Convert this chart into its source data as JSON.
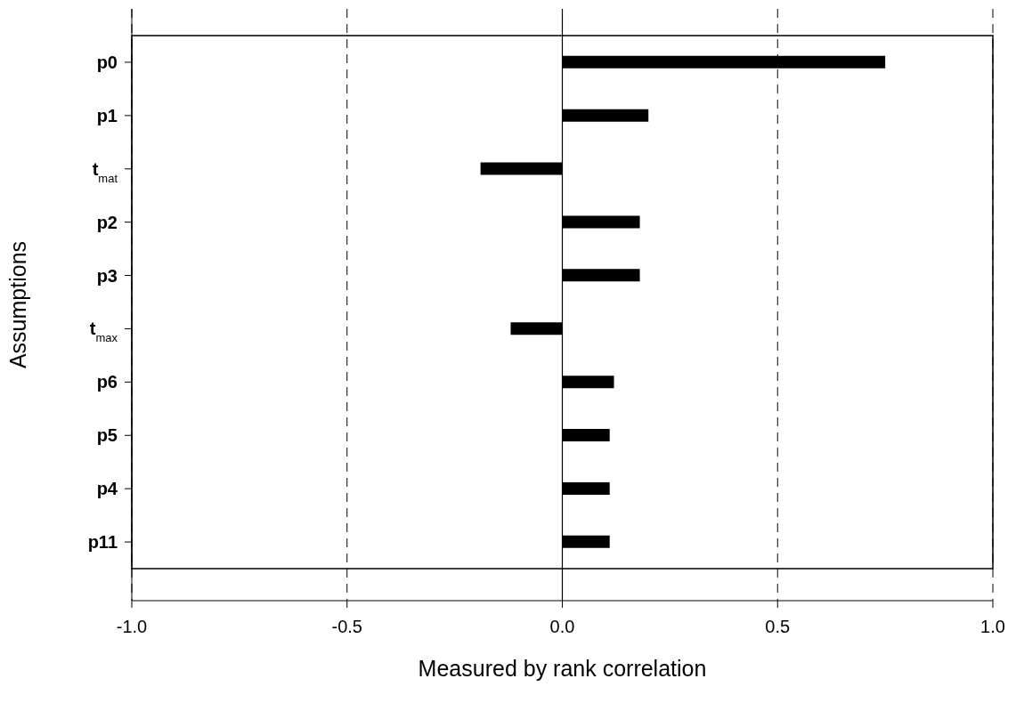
{
  "chart_data": {
    "type": "bar",
    "orientation": "horizontal",
    "xlabel": "Measured by rank correlation",
    "ylabel": "Assumptions",
    "categories": [
      "p0",
      "p1",
      "t$_{mat}$",
      "p2",
      "p3",
      "t$_{max}$",
      "p6",
      "p5",
      "p4",
      "p11"
    ],
    "values": [
      0.75,
      0.2,
      -0.19,
      0.18,
      0.18,
      -0.12,
      0.12,
      0.11,
      0.11,
      0.11
    ],
    "color": "#000000",
    "xlim": [
      -1,
      1
    ],
    "xticks": [
      {
        "value": -1,
        "label": "-1.0"
      },
      {
        "value": -0.5,
        "label": "-0.5"
      },
      {
        "value": 0,
        "label": "0.0"
      },
      {
        "value": 0.5,
        "label": "0.5"
      },
      {
        "value": 1,
        "label": "1.0"
      }
    ],
    "grid": "x",
    "line_style": "dashed",
    "ref_lines": [
      {
        "axis": "x",
        "value": 0
      }
    ]
  }
}
